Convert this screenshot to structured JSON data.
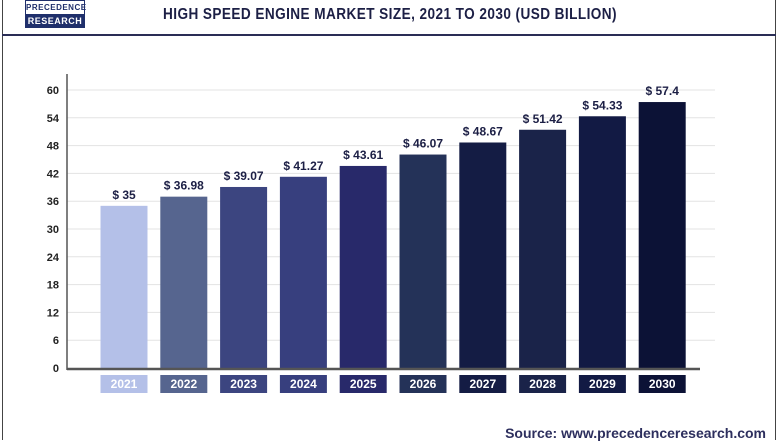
{
  "logo": {
    "line1": "PRECEDENCE",
    "line2": "RESEARCH"
  },
  "source": "Source: www.precedenceresearch.com",
  "chart_data": {
    "type": "bar",
    "title": "HIGH SPEED ENGINE MARKET SIZE, 2021 TO 2030 (USD BILLION)",
    "categories": [
      "2021",
      "2022",
      "2023",
      "2024",
      "2025",
      "2026",
      "2027",
      "2028",
      "2029",
      "2030"
    ],
    "values": [
      35,
      36.98,
      39.07,
      41.27,
      43.61,
      46.07,
      48.67,
      51.42,
      54.33,
      57.4
    ],
    "data_labels": [
      "$ 35",
      "$ 36.98",
      "$ 39.07",
      "$ 41.27",
      "$ 43.61",
      "$ 46.07",
      "$ 48.67",
      "$ 51.42",
      "$ 54.33",
      "$ 57.4"
    ],
    "colors": [
      "#b4c0e8",
      "#56658f",
      "#3c4580",
      "#373f7e",
      "#28296a",
      "#243258",
      "#141c44",
      "#1a2349",
      "#121a44",
      "#0c1236"
    ],
    "yticks": [
      0,
      6,
      12,
      18,
      24,
      30,
      36,
      42,
      48,
      54,
      60
    ],
    "ylim": [
      0,
      60
    ],
    "xlabel": "",
    "ylabel": "",
    "grid": true,
    "legend": "none"
  }
}
